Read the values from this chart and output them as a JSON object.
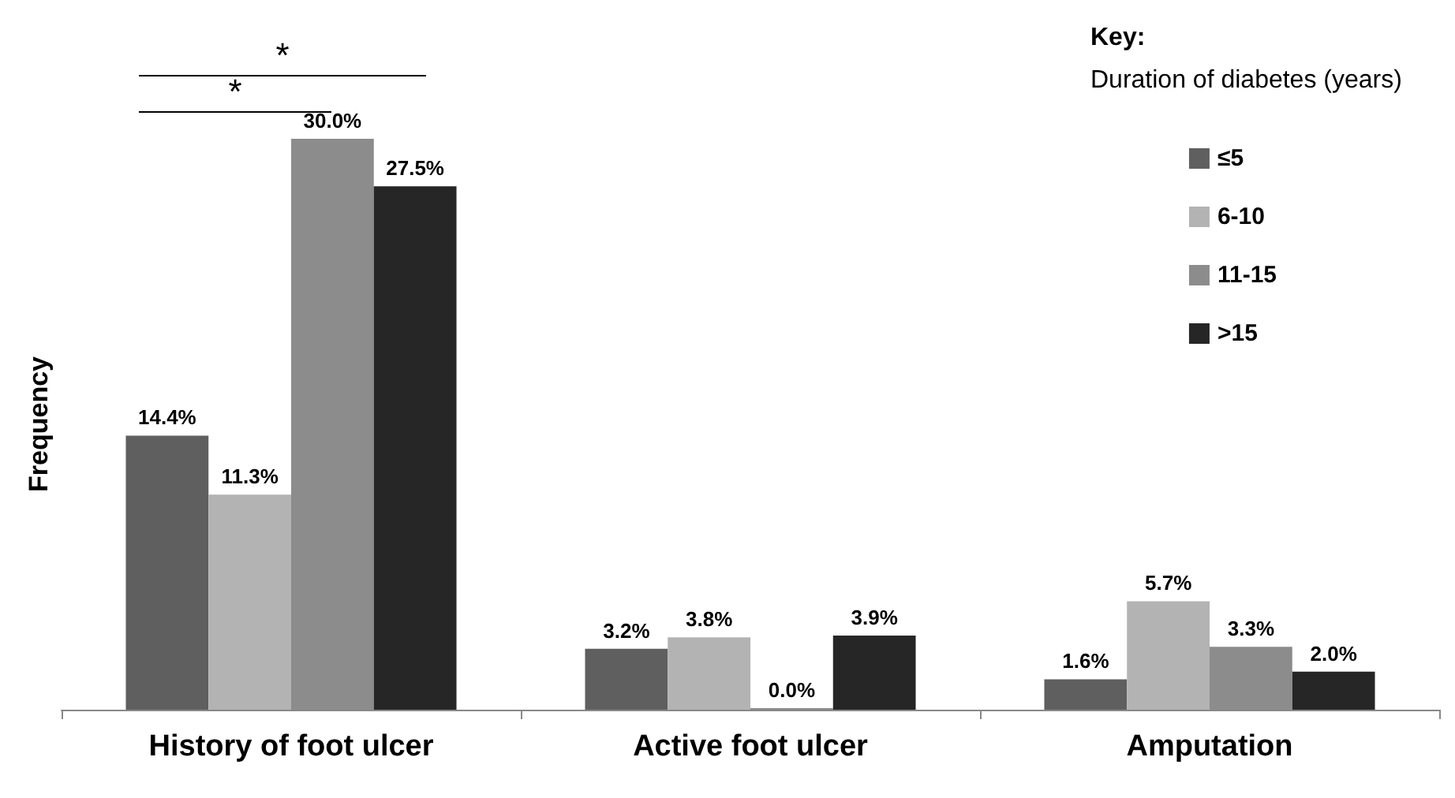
{
  "chart_data": {
    "type": "bar",
    "ylabel": "Frequency",
    "legend_title": "Key:",
    "subtitle": "Duration of diabetes (years)",
    "categories": [
      "History of foot ulcer",
      "Active foot ulcer",
      "Amputation"
    ],
    "series": [
      {
        "name": "≤5",
        "color": "#5f5f5f",
        "values": [
          14.4,
          3.2,
          1.6
        ],
        "value_labels": [
          "14.4%",
          "3.2%",
          "1.6%"
        ]
      },
      {
        "name": "6-10",
        "color": "#b3b3b3",
        "values": [
          11.3,
          3.8,
          5.7
        ],
        "value_labels": [
          "11.3%",
          "3.8%",
          "5.7%"
        ]
      },
      {
        "name": "11-15",
        "color": "#8c8c8c",
        "values": [
          30.0,
          0.0,
          3.3
        ],
        "value_labels": [
          "30.0%",
          "0.0%",
          "3.3%"
        ]
      },
      {
        "name": ">15",
        "color": "#262626",
        "values": [
          27.5,
          3.9,
          2.0
        ],
        "value_labels": [
          "27.5%",
          "3.9%",
          "2.0%"
        ]
      }
    ],
    "annotations": [
      "*",
      "*"
    ],
    "legend": "top right",
    "grid": false
  }
}
